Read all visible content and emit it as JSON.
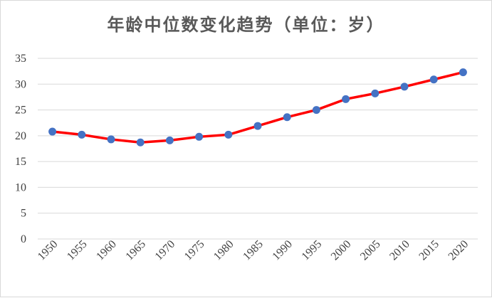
{
  "chart_data": {
    "type": "line",
    "title": "年龄中位数变化趋势（单位：岁）",
    "xlabel": "",
    "ylabel": "",
    "categories": [
      "1950",
      "1955",
      "1960",
      "1965",
      "1970",
      "1975",
      "1980",
      "1985",
      "1990",
      "1995",
      "2000",
      "2005",
      "2010",
      "2015",
      "2020"
    ],
    "series": [
      {
        "values": [
          20.8,
          20.2,
          19.3,
          18.7,
          19.1,
          19.8,
          20.2,
          21.9,
          23.6,
          25.0,
          27.1,
          28.2,
          29.5,
          30.9,
          32.3
        ]
      }
    ],
    "ylim": [
      0,
      35
    ],
    "yticks": [
      "0",
      "5",
      "10",
      "15",
      "20",
      "25",
      "30",
      "35"
    ],
    "grid": true,
    "legend": "none",
    "colors": {
      "line": "#ff0000",
      "marker": "#4472c4",
      "grid": "#d9d9d9",
      "text": "#404040"
    }
  }
}
